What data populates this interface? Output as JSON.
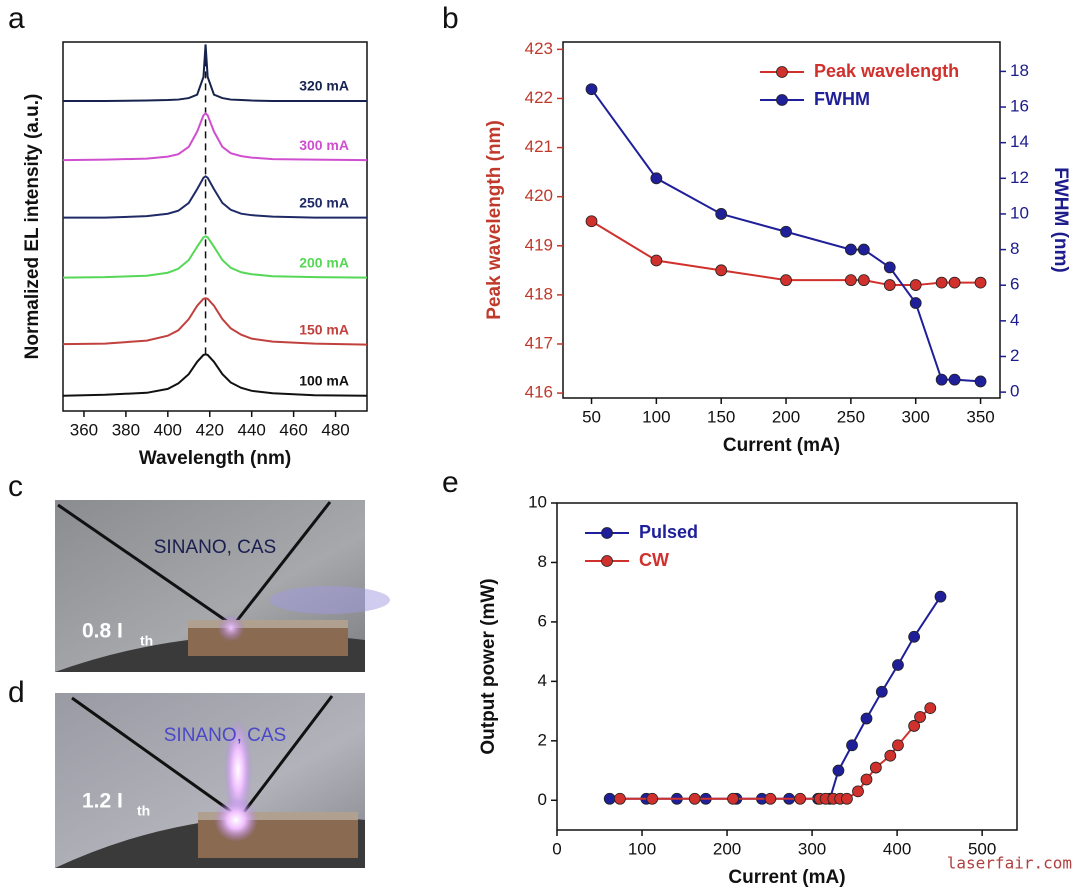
{
  "chart_data": [
    {
      "type": "line",
      "label": "a",
      "xlabel": "Wavelength (nm)",
      "ylabel": "Normalized EL intensity (a.u.)",
      "x": [
        350,
        370,
        390,
        400,
        405,
        410,
        414,
        417,
        418,
        419,
        422,
        426,
        430,
        435,
        440,
        450,
        470,
        495
      ],
      "xlim": [
        350,
        495
      ],
      "xticks": [
        360,
        380,
        400,
        420,
        440,
        460,
        480
      ],
      "ylim": [
        0,
        7.5
      ],
      "markers": false,
      "legend": "inline",
      "vline": 418,
      "series": [
        {
          "name": "100 mA",
          "color": "#111111",
          "values": [
            0.31,
            0.33,
            0.37,
            0.45,
            0.56,
            0.75,
            1.0,
            1.14,
            1.15,
            1.14,
            1.0,
            0.75,
            0.58,
            0.47,
            0.41,
            0.36,
            0.32,
            0.31
          ]
        },
        {
          "name": "150 mA",
          "color": "#c0413d",
          "values": [
            1.36,
            1.37,
            1.43,
            1.53,
            1.64,
            1.87,
            2.14,
            2.28,
            2.29,
            2.28,
            2.14,
            1.87,
            1.68,
            1.55,
            1.47,
            1.41,
            1.37,
            1.35
          ]
        },
        {
          "name": "200 mA",
          "color": "#56d856",
          "values": [
            2.71,
            2.72,
            2.75,
            2.81,
            2.89,
            3.07,
            3.34,
            3.53,
            3.55,
            3.53,
            3.34,
            3.07,
            2.91,
            2.82,
            2.78,
            2.74,
            2.72,
            2.71
          ]
        },
        {
          "name": "250 mA",
          "color": "#1f2a66",
          "values": [
            3.93,
            3.93,
            3.96,
            4.01,
            4.07,
            4.23,
            4.51,
            4.74,
            4.77,
            4.74,
            4.51,
            4.23,
            4.09,
            4.01,
            3.98,
            3.95,
            3.93,
            3.93
          ]
        },
        {
          "name": "300 mA",
          "color": "#cf4fcf",
          "values": [
            5.1,
            5.11,
            5.13,
            5.17,
            5.22,
            5.37,
            5.68,
            6.01,
            6.05,
            6.01,
            5.68,
            5.37,
            5.24,
            5.18,
            5.15,
            5.12,
            5.11,
            5.1
          ]
        },
        {
          "name": "320 mA",
          "color": "#17234f",
          "values": [
            6.3,
            6.3,
            6.31,
            6.32,
            6.33,
            6.36,
            6.43,
            6.79,
            7.45,
            6.79,
            6.43,
            6.36,
            6.33,
            6.32,
            6.31,
            6.3,
            6.3,
            6.3
          ]
        }
      ]
    },
    {
      "type": "line",
      "label": "b",
      "xlabel": "Current (mA)",
      "ylabel": "Peak wavelength (nm)",
      "y2label": "FWHM (nm)",
      "ycolor": "#c0392b",
      "y2color": "#1c1c8c",
      "x": [
        50,
        100,
        150,
        200,
        250,
        260,
        280,
        300,
        320,
        330,
        350
      ],
      "xlim": [
        28,
        365
      ],
      "xticks": [
        50,
        100,
        150,
        200,
        250,
        300,
        350
      ],
      "ylim": [
        415.9,
        423.15
      ],
      "yticks": [
        416,
        417,
        418,
        419,
        420,
        421,
        422,
        423
      ],
      "y2lim": [
        -0.33,
        19.65
      ],
      "y2ticks": [
        0,
        2,
        4,
        6,
        8,
        10,
        12,
        14,
        16,
        18
      ],
      "markers": true,
      "legend": "upper right",
      "series": [
        {
          "name": "Peak wavelength",
          "color": "#d0312d",
          "values": [
            419.5,
            418.7,
            418.5,
            418.3,
            418.3,
            418.3,
            418.2,
            418.2,
            418.25,
            418.25,
            418.25
          ]
        },
        {
          "name": "FWHM",
          "color": "#1f1f9a",
          "axis": "y2",
          "values": [
            17,
            12,
            10,
            9,
            8,
            8,
            7,
            5,
            0.7,
            0.7,
            0.6
          ]
        }
      ]
    },
    {
      "type": "line",
      "label": "e",
      "xlabel": "Current (mA)",
      "ylabel": "Output power (mW)",
      "xlim": [
        0,
        541
      ],
      "xticks": [
        0,
        100,
        200,
        300,
        400,
        500
      ],
      "ylim": [
        -1,
        10
      ],
      "yticks": [
        0,
        2,
        4,
        6,
        8,
        10
      ],
      "markers": true,
      "legend": "upper left",
      "series": [
        {
          "name": "Pulsed",
          "color": "#1f1f9a",
          "x": [
            62,
            105,
            141,
            175,
            211,
            241,
            273,
            307,
            321,
            331,
            347,
            364,
            382,
            401,
            420,
            451
          ],
          "values": [
            0.05,
            0.05,
            0.05,
            0.05,
            0.05,
            0.05,
            0.05,
            0.05,
            0.05,
            1.0,
            1.85,
            2.75,
            3.65,
            4.55,
            5.5,
            6.85
          ]
        },
        {
          "name": "CW",
          "color": "#d0312d",
          "x": [
            74,
            112,
            162,
            207,
            251,
            286,
            309,
            316,
            325,
            333,
            341,
            354,
            364,
            375,
            392,
            401,
            420,
            427,
            439
          ],
          "values": [
            0.05,
            0.05,
            0.05,
            0.05,
            0.05,
            0.05,
            0.05,
            0.05,
            0.05,
            0.05,
            0.05,
            0.3,
            0.7,
            1.1,
            1.5,
            1.85,
            2.5,
            2.8,
            3.1
          ]
        }
      ]
    }
  ],
  "photos": [
    {
      "label": "c",
      "caption": "SINANO, CAS",
      "text": "0.8 I",
      "subscript": "th"
    },
    {
      "label": "d",
      "caption": "SINANO, CAS",
      "text": "1.2 I",
      "subscript": "th"
    }
  ],
  "watermark": "laserfair.com"
}
